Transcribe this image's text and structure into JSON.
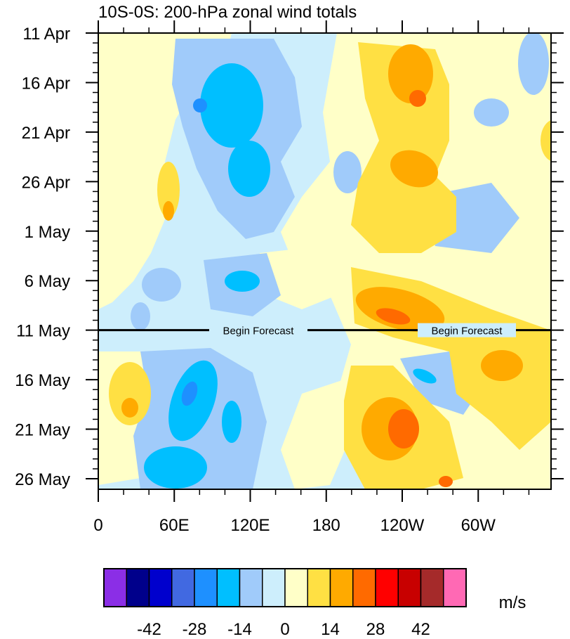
{
  "chart_data": {
    "type": "heatmap",
    "title": "10S-0S: 200-hPa zonal wind totals",
    "x_axis": {
      "tick_labels": [
        "0",
        "60E",
        "120E",
        "180",
        "120W",
        "60W"
      ],
      "range_deg_east": [
        0,
        357.5
      ]
    },
    "y_axis": {
      "tick_labels": [
        "11 Apr",
        "16 Apr",
        "21 Apr",
        "26 Apr",
        "1 May",
        "6 May",
        "11 May",
        "16 May",
        "21 May",
        "26 May"
      ],
      "range": [
        "11 Apr",
        "26 May"
      ],
      "orientation": "time increases downward"
    },
    "forecast_line": {
      "date": "11 May",
      "label": "Begin Forecast"
    },
    "colorbar": {
      "units": "m/s",
      "tick_labels": [
        "-42",
        "-28",
        "-14",
        "0",
        "14",
        "28",
        "42"
      ],
      "colors": [
        "#8b2ee6",
        "#00008b",
        "#0000cd",
        "#4169e1",
        "#1e90ff",
        "#00bfff",
        "#a0cbfa",
        "#cdeefc",
        "#ffffc8",
        "#ffe043",
        "#ffaa00",
        "#ff6a00",
        "#ff0000",
        "#c80000",
        "#a52a2a",
        "#ff69b4"
      ]
    },
    "features": [
      {
        "region": "40E-90E, 15 May-26 May",
        "sign": "easterly",
        "peak_ms": -30
      },
      {
        "region": "80E-120E, 12 Apr-1 May",
        "sign": "easterly",
        "peak_ms": -25
      },
      {
        "region": "170W-110W, 6 May-12 May",
        "sign": "westerly",
        "peak_ms": 32
      },
      {
        "region": "150W-110W, 15 May-26 May",
        "sign": "westerly",
        "peak_ms": 35
      },
      {
        "region": "70W-0W, 12 May-26 May",
        "sign": "westerly",
        "peak_ms": 25
      },
      {
        "region": "130W-90W, 11 Apr-30 Apr",
        "sign": "westerly",
        "peak_ms": 22
      }
    ]
  }
}
